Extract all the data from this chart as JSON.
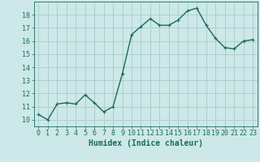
{
  "x": [
    0,
    1,
    2,
    3,
    4,
    5,
    6,
    7,
    8,
    9,
    10,
    11,
    12,
    13,
    14,
    15,
    16,
    17,
    18,
    19,
    20,
    21,
    22,
    23
  ],
  "y": [
    10.4,
    10.0,
    11.2,
    11.3,
    11.2,
    11.9,
    11.3,
    10.6,
    11.0,
    13.5,
    16.5,
    17.1,
    17.7,
    17.2,
    17.2,
    17.6,
    18.3,
    18.5,
    17.2,
    16.2,
    15.5,
    15.4,
    16.0,
    16.1
  ],
  "line_color": "#1a6b5a",
  "marker": "+",
  "marker_size": 3,
  "bg_color": "#cce8e8",
  "grid_color": "#aacccc",
  "xlabel": "Humidex (Indice chaleur)",
  "xlim": [
    -0.5,
    23.5
  ],
  "ylim": [
    9.5,
    19.0
  ],
  "yticks": [
    10,
    11,
    12,
    13,
    14,
    15,
    16,
    17,
    18
  ],
  "xticks": [
    0,
    1,
    2,
    3,
    4,
    5,
    6,
    7,
    8,
    9,
    10,
    11,
    12,
    13,
    14,
    15,
    16,
    17,
    18,
    19,
    20,
    21,
    22,
    23
  ],
  "tick_color": "#1a6b5a",
  "xlabel_fontsize": 7,
  "tick_fontsize": 6,
  "line_width": 1.0,
  "marker_edge_width": 0.8
}
